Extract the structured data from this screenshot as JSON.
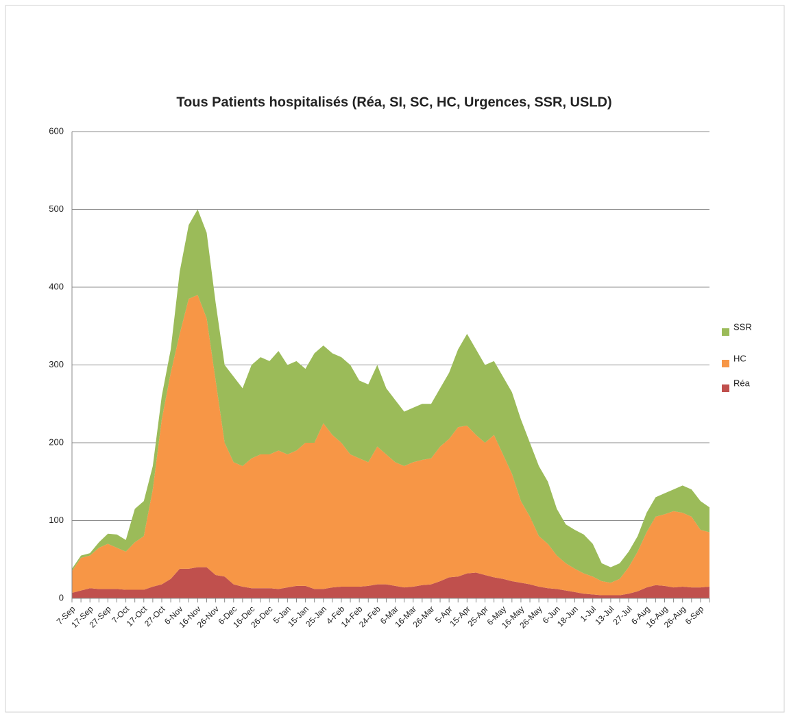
{
  "chart_data": {
    "type": "stacked-area",
    "title": "Tous Patients hospitalisés (Réa, SI, SC, HC, Urgences, SSR, USLD)",
    "categories": [
      "7-Sep",
      null,
      "17-Sep",
      null,
      "27-Sep",
      null,
      "7-Oct",
      null,
      "17-Oct",
      null,
      "27-Oct",
      null,
      "6-Nov",
      null,
      "16-Nov",
      null,
      "26-Nov",
      null,
      "6-Dec",
      null,
      "16-Dec",
      null,
      "26-Dec",
      null,
      "5-Jan",
      null,
      "15-Jan",
      null,
      "25-Jan",
      null,
      "4-Feb",
      null,
      "14-Feb",
      null,
      "24-Feb",
      null,
      "6-Mar",
      null,
      "16-Mar",
      null,
      "26-Mar",
      null,
      "5-Apr",
      null,
      "15-Apr",
      null,
      "25-Apr",
      null,
      "6-May",
      null,
      "16-May",
      null,
      "26-May",
      null,
      "6-Jun",
      null,
      "18-Jun",
      null,
      "1-Jul",
      null,
      "13-Jul",
      null,
      "27-Jul",
      null,
      "6-Aug",
      null,
      "16-Aug",
      null,
      "26-Aug",
      null,
      "6-Sep",
      null
    ],
    "series": [
      {
        "name": "Réa",
        "color": "#c0504d",
        "values": [
          7,
          10,
          13,
          12,
          12,
          12,
          11,
          11,
          11,
          15,
          18,
          25,
          38,
          38,
          40,
          40,
          30,
          28,
          18,
          15,
          13,
          13,
          13,
          12,
          14,
          16,
          16,
          12,
          12,
          14,
          15,
          15,
          15,
          16,
          18,
          18,
          16,
          14,
          15,
          17,
          18,
          22,
          27,
          28,
          32,
          33,
          30,
          27,
          25,
          22,
          20,
          18,
          15,
          13,
          12,
          10,
          8,
          6,
          5,
          4,
          4,
          4,
          6,
          9,
          14,
          17,
          16,
          14,
          15,
          14,
          14,
          15
        ]
      },
      {
        "name": "HC",
        "color": "#f79646",
        "values": [
          28,
          42,
          42,
          53,
          58,
          53,
          49,
          61,
          69,
          125,
          212,
          265,
          302,
          347,
          350,
          320,
          250,
          172,
          157,
          155,
          167,
          172,
          172,
          178,
          171,
          174,
          184,
          188,
          213,
          196,
          185,
          170,
          165,
          159,
          177,
          167,
          159,
          156,
          160,
          161,
          162,
          173,
          178,
          192,
          190,
          177,
          170,
          183,
          160,
          138,
          105,
          87,
          65,
          57,
          43,
          35,
          30,
          26,
          23,
          18,
          16,
          21,
          34,
          51,
          71,
          88,
          92,
          98,
          95,
          91,
          74,
          70
        ]
      },
      {
        "name": "SSR",
        "color": "#9bbb59",
        "values": [
          3,
          3,
          3,
          7,
          13,
          17,
          15,
          43,
          45,
          30,
          30,
          30,
          80,
          95,
          110,
          110,
          100,
          100,
          110,
          100,
          120,
          125,
          120,
          128,
          115,
          115,
          95,
          115,
          100,
          105,
          110,
          115,
          100,
          100,
          105,
          85,
          80,
          70,
          70,
          72,
          70,
          75,
          85,
          100,
          118,
          110,
          100,
          95,
          100,
          105,
          105,
          95,
          90,
          80,
          60,
          50,
          50,
          50,
          42,
          23,
          20,
          20,
          20,
          20,
          25,
          25,
          27,
          28,
          35,
          35,
          37,
          32
        ]
      }
    ],
    "ylim": [
      0,
      600
    ],
    "yticks": [
      0,
      100,
      200,
      300,
      400,
      500,
      600
    ],
    "grid": true,
    "legend": "right"
  }
}
